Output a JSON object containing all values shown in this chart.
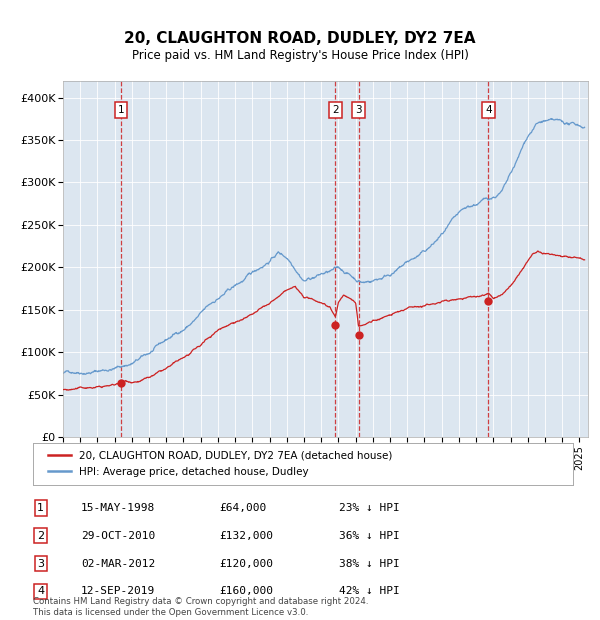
{
  "title": "20, CLAUGHTON ROAD, DUDLEY, DY2 7EA",
  "subtitle": "Price paid vs. HM Land Registry's House Price Index (HPI)",
  "background_color": "#dce6f0",
  "plot_bg_color": "#dce6f0",
  "hpi_color": "#6699cc",
  "price_color": "#cc2222",
  "marker_color": "#cc2222",
  "vline_color_dashed": "#cc2222",
  "transactions": [
    {
      "label": "1",
      "date_num": 1998.37,
      "price": 64000
    },
    {
      "label": "2",
      "date_num": 2010.83,
      "price": 132000
    },
    {
      "label": "3",
      "date_num": 2012.17,
      "price": 120000
    },
    {
      "label": "4",
      "date_num": 2019.71,
      "price": 160000
    }
  ],
  "ylim": [
    0,
    420000
  ],
  "xlim": [
    1995.0,
    2025.5
  ],
  "yticks": [
    0,
    50000,
    100000,
    150000,
    200000,
    250000,
    300000,
    350000,
    400000
  ],
  "ytick_labels": [
    "£0",
    "£50K",
    "£100K",
    "£150K",
    "£200K",
    "£250K",
    "£300K",
    "£350K",
    "£400K"
  ],
  "xtick_years": [
    1995,
    1996,
    1997,
    1998,
    1999,
    2000,
    2001,
    2002,
    2003,
    2004,
    2005,
    2006,
    2007,
    2008,
    2009,
    2010,
    2011,
    2012,
    2013,
    2014,
    2015,
    2016,
    2017,
    2018,
    2019,
    2020,
    2021,
    2022,
    2023,
    2024,
    2025
  ],
  "legend_entries": [
    "20, CLAUGHTON ROAD, DUDLEY, DY2 7EA (detached house)",
    "HPI: Average price, detached house, Dudley"
  ],
  "footer_text": "Contains HM Land Registry data © Crown copyright and database right 2024.\nThis data is licensed under the Open Government Licence v3.0.",
  "table_rows": [
    [
      "1",
      "15-MAY-1998",
      "£64,000",
      "23% ↓ HPI"
    ],
    [
      "2",
      "29-OCT-2010",
      "£132,000",
      "36% ↓ HPI"
    ],
    [
      "3",
      "02-MAR-2012",
      "£120,000",
      "38% ↓ HPI"
    ],
    [
      "4",
      "12-SEP-2019",
      "£160,000",
      "42% ↓ HPI"
    ]
  ],
  "hpi_anchors": [
    [
      1995.0,
      75000
    ],
    [
      1996.0,
      79000
    ],
    [
      1997.0,
      82000
    ],
    [
      1998.0,
      86000
    ],
    [
      1999.0,
      92000
    ],
    [
      2000.0,
      102000
    ],
    [
      2001.0,
      115000
    ],
    [
      2002.0,
      128000
    ],
    [
      2003.0,
      145000
    ],
    [
      2004.0,
      162000
    ],
    [
      2005.0,
      175000
    ],
    [
      2006.0,
      188000
    ],
    [
      2007.0,
      205000
    ],
    [
      2007.5,
      215000
    ],
    [
      2008.0,
      210000
    ],
    [
      2008.5,
      200000
    ],
    [
      2009.0,
      188000
    ],
    [
      2009.5,
      192000
    ],
    [
      2010.0,
      196000
    ],
    [
      2010.5,
      198000
    ],
    [
      2011.0,
      200000
    ],
    [
      2011.5,
      195000
    ],
    [
      2012.0,
      188000
    ],
    [
      2012.5,
      185000
    ],
    [
      2013.0,
      188000
    ],
    [
      2013.5,
      192000
    ],
    [
      2014.0,
      198000
    ],
    [
      2014.5,
      203000
    ],
    [
      2015.0,
      210000
    ],
    [
      2015.5,
      215000
    ],
    [
      2016.0,
      220000
    ],
    [
      2016.5,
      228000
    ],
    [
      2017.0,
      238000
    ],
    [
      2017.5,
      248000
    ],
    [
      2018.0,
      255000
    ],
    [
      2018.5,
      260000
    ],
    [
      2019.0,
      264000
    ],
    [
      2019.5,
      268000
    ],
    [
      2020.0,
      272000
    ],
    [
      2020.5,
      278000
    ],
    [
      2021.0,
      295000
    ],
    [
      2021.5,
      315000
    ],
    [
      2022.0,
      338000
    ],
    [
      2022.5,
      352000
    ],
    [
      2023.0,
      355000
    ],
    [
      2023.5,
      352000
    ],
    [
      2024.0,
      348000
    ],
    [
      2024.5,
      345000
    ],
    [
      2025.3,
      342000
    ]
  ],
  "price_anchors": [
    [
      1995.0,
      56000
    ],
    [
      1996.0,
      57000
    ],
    [
      1997.0,
      58000
    ],
    [
      1998.0,
      60000
    ],
    [
      1998.37,
      64000
    ],
    [
      1999.0,
      65000
    ],
    [
      2000.0,
      70000
    ],
    [
      2001.0,
      78000
    ],
    [
      2002.0,
      88000
    ],
    [
      2003.0,
      100000
    ],
    [
      2004.0,
      118000
    ],
    [
      2005.0,
      130000
    ],
    [
      2006.0,
      138000
    ],
    [
      2007.0,
      148000
    ],
    [
      2007.5,
      155000
    ],
    [
      2008.0,
      162000
    ],
    [
      2008.5,
      165000
    ],
    [
      2009.0,
      152000
    ],
    [
      2009.5,
      148000
    ],
    [
      2010.0,
      146000
    ],
    [
      2010.5,
      142000
    ],
    [
      2010.83,
      132000
    ],
    [
      2011.0,
      148000
    ],
    [
      2011.3,
      158000
    ],
    [
      2011.5,
      155000
    ],
    [
      2012.0,
      148000
    ],
    [
      2012.17,
      120000
    ],
    [
      2012.5,
      122000
    ],
    [
      2013.0,
      126000
    ],
    [
      2013.5,
      130000
    ],
    [
      2014.0,
      133000
    ],
    [
      2014.5,
      136000
    ],
    [
      2015.0,
      139000
    ],
    [
      2015.5,
      142000
    ],
    [
      2016.0,
      144000
    ],
    [
      2016.5,
      146000
    ],
    [
      2017.0,
      149000
    ],
    [
      2017.5,
      151000
    ],
    [
      2018.0,
      153000
    ],
    [
      2018.5,
      155000
    ],
    [
      2019.0,
      156000
    ],
    [
      2019.5,
      158000
    ],
    [
      2019.71,
      160000
    ],
    [
      2020.0,
      154000
    ],
    [
      2020.5,
      158000
    ],
    [
      2021.0,
      168000
    ],
    [
      2021.5,
      182000
    ],
    [
      2022.0,
      198000
    ],
    [
      2022.3,
      208000
    ],
    [
      2022.6,
      210000
    ],
    [
      2023.0,
      205000
    ],
    [
      2023.5,
      202000
    ],
    [
      2024.0,
      200000
    ],
    [
      2024.5,
      200000
    ],
    [
      2025.3,
      200000
    ]
  ]
}
